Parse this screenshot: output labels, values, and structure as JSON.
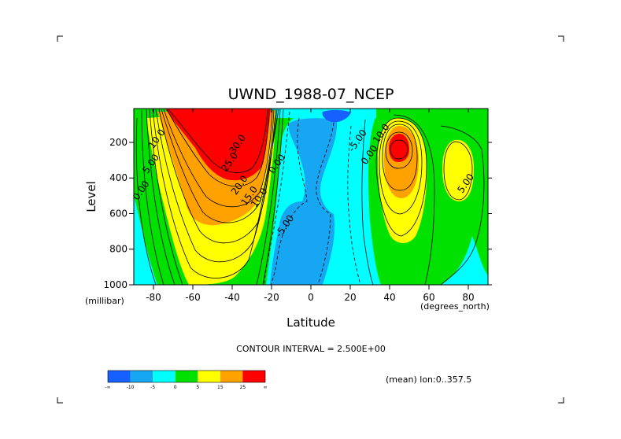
{
  "chart_data": {
    "type": "heatmap",
    "subtype": "filled-contour",
    "title": "UWND_1988-07_NCEP",
    "xlabel": "Latitude",
    "xunits": "(degrees_north)",
    "ylabel": "Level",
    "yunits": "(millibar)",
    "xlim": [
      -90,
      90
    ],
    "ylim": [
      1000,
      10
    ],
    "x_ticks": [
      -80,
      -60,
      -40,
      -20,
      0,
      20,
      40,
      60,
      80
    ],
    "x_tick_labels": [
      "-80",
      "-60",
      "-40",
      "-20",
      "0",
      "20",
      "40",
      "60",
      "80"
    ],
    "y_ticks": [
      200,
      400,
      600,
      800,
      1000
    ],
    "y_tick_labels": [
      "200",
      "400",
      "600",
      "800",
      "1000"
    ],
    "contour_interval_label": "CONTOUR INTERVAL = 2.500E+00",
    "contour_labels": [
      {
        "text": "10.0",
        "lat": -77,
        "level": 190
      },
      {
        "text": "5.00",
        "lat": -80,
        "level": 330
      },
      {
        "text": "0.00",
        "lat": -85,
        "level": 480
      },
      {
        "text": "30.0",
        "lat": -36,
        "level": 220
      },
      {
        "text": "25.0",
        "lat": -40,
        "level": 320
      },
      {
        "text": "20.0",
        "lat": -35,
        "level": 450
      },
      {
        "text": "15.0",
        "lat": -30,
        "level": 510
      },
      {
        "text": "10.0",
        "lat": -25,
        "level": 520
      },
      {
        "text": "0.00",
        "lat": -16,
        "level": 330
      },
      {
        "text": "-5.00",
        "lat": -12,
        "level": 680
      },
      {
        "text": "-5.00",
        "lat": 25,
        "level": 200
      },
      {
        "text": "0.00",
        "lat": 31,
        "level": 280
      },
      {
        "text": "10.0",
        "lat": 37,
        "level": 160
      },
      {
        "text": "5.00",
        "lat": 80,
        "level": 440
      }
    ],
    "colorbar": {
      "ticks": [
        "-∞",
        "-10",
        "-5",
        "0",
        "5",
        "15",
        "25",
        "∞"
      ],
      "colors": [
        "#1560ff",
        "#16a6f2",
        "#00ffff",
        "#00e100",
        "#ffff00",
        "#ffa200",
        "#ff0000"
      ]
    },
    "annotation": "(mean) lon:0..357.5",
    "grid": false
  }
}
